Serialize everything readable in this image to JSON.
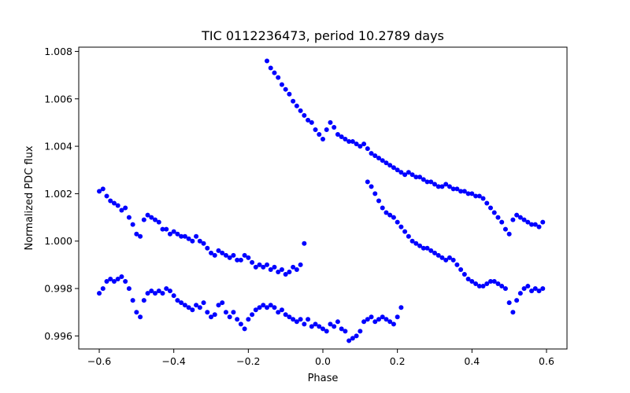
{
  "chart_data": {
    "type": "scatter",
    "title": "TIC 0112236473, period 10.2789 days",
    "xlabel": "Phase",
    "ylabel": "Normalized PDC flux",
    "xlim": [
      -0.655,
      0.655
    ],
    "ylim": [
      0.99545,
      1.00818
    ],
    "x_ticks": [
      -0.6,
      -0.4,
      -0.2,
      0.0,
      0.2,
      0.4,
      0.6
    ],
    "x_tick_labels": [
      "−0.6",
      "−0.4",
      "−0.2",
      "0.0",
      "0.2",
      "0.4",
      "0.6"
    ],
    "y_ticks": [
      0.996,
      0.998,
      1.0,
      1.002,
      1.004,
      1.006,
      1.008
    ],
    "y_tick_labels": [
      "0.996",
      "0.998",
      "1.000",
      "1.002",
      "1.004",
      "1.006",
      "1.008"
    ],
    "grid": false,
    "marker_color": "#0000ff",
    "series": [
      {
        "x": [
          -0.6,
          -0.59,
          -0.58,
          -0.57,
          -0.56,
          -0.55,
          -0.54,
          -0.53,
          -0.52,
          -0.51,
          -0.5,
          -0.49,
          -0.48,
          -0.47,
          -0.46,
          -0.45,
          -0.44,
          -0.43,
          -0.42,
          -0.41,
          -0.4,
          -0.39,
          -0.38,
          -0.37,
          -0.36,
          -0.35,
          -0.34,
          -0.33,
          -0.32,
          -0.31,
          -0.3,
          -0.29,
          -0.28,
          -0.27,
          -0.26,
          -0.25,
          -0.24,
          -0.23,
          -0.22,
          -0.21,
          -0.2,
          -0.19,
          -0.18,
          -0.17,
          -0.16,
          -0.15,
          -0.14,
          -0.13,
          -0.12,
          -0.11,
          -0.1,
          -0.09,
          -0.08,
          -0.07,
          -0.06,
          -0.05
        ],
        "y": [
          1.0021,
          1.0022,
          1.0019,
          1.0017,
          1.0016,
          1.0015,
          1.0013,
          1.0014,
          1.001,
          1.0007,
          1.0003,
          1.0002,
          1.0009,
          1.0011,
          1.001,
          1.0009,
          1.0008,
          1.0005,
          1.0005,
          1.0003,
          1.0004,
          1.0003,
          1.0002,
          1.0002,
          1.0001,
          1.0,
          1.0002,
          1.0,
          0.9999,
          0.9997,
          0.9995,
          0.9994,
          0.9996,
          0.9995,
          0.9994,
          0.9993,
          0.9994,
          0.9992,
          0.9992,
          0.9994,
          0.9993,
          0.9991,
          0.9989,
          0.999,
          0.9989,
          0.999,
          0.9988,
          0.9989,
          0.9987,
          0.9988,
          0.9986,
          0.9987,
          0.9989,
          0.9988,
          0.999,
          0.9999
        ]
      },
      {
        "x": [
          -0.6,
          -0.59,
          -0.58,
          -0.57,
          -0.56,
          -0.55,
          -0.54,
          -0.53,
          -0.52,
          -0.51,
          -0.5,
          -0.49,
          -0.48,
          -0.47,
          -0.46,
          -0.45,
          -0.44,
          -0.43,
          -0.42,
          -0.41,
          -0.4,
          -0.39,
          -0.38,
          -0.37,
          -0.36,
          -0.35,
          -0.34,
          -0.33,
          -0.32,
          -0.31,
          -0.3,
          -0.29,
          -0.28,
          -0.27,
          -0.26,
          -0.25,
          -0.24,
          -0.23,
          -0.22,
          -0.21,
          -0.2,
          -0.19,
          -0.18,
          -0.17,
          -0.16,
          -0.15,
          -0.14,
          -0.13,
          -0.12,
          -0.11,
          -0.1,
          -0.09,
          -0.08,
          -0.07,
          -0.06,
          -0.05,
          -0.04,
          -0.03,
          -0.02,
          -0.01,
          0.0,
          0.01,
          0.02,
          0.03,
          0.04,
          0.05,
          0.06,
          0.07,
          0.08,
          0.09,
          0.1,
          0.11,
          0.12,
          0.13,
          0.14,
          0.15,
          0.16,
          0.17,
          0.18,
          0.19,
          0.2,
          0.21
        ],
        "y": [
          0.9978,
          0.998,
          0.9983,
          0.9984,
          0.9983,
          0.9984,
          0.9985,
          0.9983,
          0.998,
          0.9975,
          0.997,
          0.9968,
          0.9975,
          0.9978,
          0.9979,
          0.9978,
          0.9979,
          0.9978,
          0.998,
          0.9979,
          0.9977,
          0.9975,
          0.9974,
          0.9973,
          0.9972,
          0.9971,
          0.9973,
          0.9972,
          0.9974,
          0.997,
          0.9968,
          0.9969,
          0.9973,
          0.9974,
          0.997,
          0.9968,
          0.997,
          0.9967,
          0.9965,
          0.9963,
          0.9967,
          0.9969,
          0.9971,
          0.9972,
          0.9973,
          0.9972,
          0.9973,
          0.9972,
          0.997,
          0.9971,
          0.9969,
          0.9968,
          0.9967,
          0.9966,
          0.9967,
          0.9965,
          0.9967,
          0.9964,
          0.9965,
          0.9964,
          0.9963,
          0.9962,
          0.9965,
          0.9964,
          0.9966,
          0.9963,
          0.9962,
          0.9958,
          0.9959,
          0.996,
          0.9962,
          0.9966,
          0.9967,
          0.9968,
          0.9966,
          0.9967,
          0.9968,
          0.9967,
          0.9966,
          0.9965,
          0.9968,
          0.9972
        ]
      },
      {
        "x": [
          -0.15,
          -0.14,
          -0.13,
          -0.12,
          -0.11,
          -0.1,
          -0.09,
          -0.08,
          -0.07,
          -0.06,
          -0.05,
          -0.04,
          -0.03,
          -0.02,
          -0.01,
          0.0,
          0.01,
          0.02,
          0.03,
          0.04,
          0.05,
          0.06,
          0.07,
          0.08,
          0.09,
          0.1,
          0.11,
          0.12,
          0.13,
          0.14,
          0.15,
          0.16,
          0.17,
          0.18,
          0.19,
          0.2,
          0.21,
          0.22,
          0.23,
          0.24,
          0.25,
          0.26,
          0.27,
          0.28,
          0.29,
          0.3,
          0.31,
          0.32,
          0.33,
          0.34,
          0.35,
          0.36,
          0.37,
          0.38,
          0.39,
          0.4,
          0.41,
          0.42,
          0.43,
          0.44,
          0.45,
          0.46,
          0.47,
          0.48,
          0.49,
          0.5,
          0.51,
          0.52,
          0.53,
          0.54,
          0.55,
          0.56,
          0.57,
          0.58,
          0.59
        ],
        "y": [
          1.0076,
          1.0073,
          1.0071,
          1.0069,
          1.0066,
          1.0064,
          1.0062,
          1.0059,
          1.0057,
          1.0055,
          1.0053,
          1.0051,
          1.005,
          1.0047,
          1.0045,
          1.0043,
          1.0047,
          1.005,
          1.0048,
          1.0045,
          1.0044,
          1.0043,
          1.0042,
          1.0042,
          1.0041,
          1.004,
          1.0041,
          1.0039,
          1.0037,
          1.0036,
          1.0035,
          1.0034,
          1.0033,
          1.0032,
          1.0031,
          1.003,
          1.0029,
          1.0028,
          1.0029,
          1.0028,
          1.0027,
          1.0027,
          1.0026,
          1.0025,
          1.0025,
          1.0024,
          1.0023,
          1.0023,
          1.0024,
          1.0023,
          1.0022,
          1.0022,
          1.0021,
          1.0021,
          1.002,
          1.002,
          1.0019,
          1.0019,
          1.0018,
          1.0016,
          1.0014,
          1.0012,
          1.001,
          1.0008,
          1.0005,
          1.0003,
          1.0009,
          1.0011,
          1.001,
          1.0009,
          1.0008,
          1.0007,
          1.0007,
          1.0006,
          1.0008
        ]
      },
      {
        "x": [
          0.12,
          0.13,
          0.14,
          0.15,
          0.16,
          0.17,
          0.18,
          0.19,
          0.2,
          0.21,
          0.22,
          0.23,
          0.24,
          0.25,
          0.26,
          0.27,
          0.28,
          0.29,
          0.3,
          0.31,
          0.32,
          0.33,
          0.34,
          0.35,
          0.36,
          0.37,
          0.38,
          0.39,
          0.4,
          0.41,
          0.42,
          0.43,
          0.44,
          0.45,
          0.46,
          0.47,
          0.48,
          0.49,
          0.5,
          0.51,
          0.52,
          0.53,
          0.54,
          0.55,
          0.56,
          0.57,
          0.58,
          0.59
        ],
        "y": [
          1.0025,
          1.0023,
          1.002,
          1.0017,
          1.0014,
          1.0012,
          1.0011,
          1.001,
          1.0008,
          1.0006,
          1.0004,
          1.0002,
          1.0,
          0.9999,
          0.9998,
          0.9997,
          0.9997,
          0.9996,
          0.9995,
          0.9994,
          0.9993,
          0.9992,
          0.9993,
          0.9992,
          0.999,
          0.9988,
          0.9986,
          0.9984,
          0.9983,
          0.9982,
          0.9981,
          0.9981,
          0.9982,
          0.9983,
          0.9983,
          0.9982,
          0.9981,
          0.998,
          0.9974,
          0.997,
          0.9975,
          0.9978,
          0.998,
          0.9981,
          0.9979,
          0.998,
          0.9979,
          0.998
        ]
      }
    ]
  }
}
